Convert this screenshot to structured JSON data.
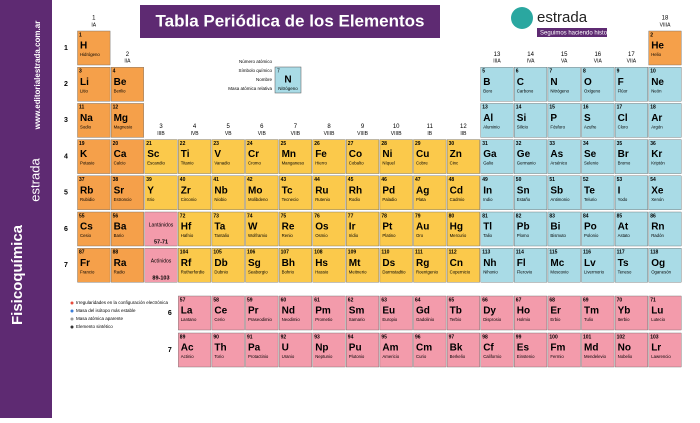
{
  "header": {
    "title": "Tabla Periódica de los Elementos",
    "brand": "estrada",
    "slogan": "Seguimos haciendo historia"
  },
  "sidebar": {
    "url": "www.editorialestrada.com.ar",
    "brand": "estrada",
    "subject": "Fisicoquímica"
  },
  "groups": [
    {
      "number": 1,
      "roman": "IA"
    },
    {
      "number": 2,
      "roman": "IIA"
    },
    {
      "number": 3,
      "roman": "IIIB"
    },
    {
      "number": 4,
      "roman": "IVB"
    },
    {
      "number": 5,
      "roman": "VB"
    },
    {
      "number": 6,
      "roman": "VIB"
    },
    {
      "number": 7,
      "roman": "VIIB"
    },
    {
      "number": 8,
      "roman": "VIIIB"
    },
    {
      "number": 9,
      "roman": "VIIIB"
    },
    {
      "number": 10,
      "roman": "VIIIB"
    },
    {
      "number": 11,
      "roman": "IB"
    },
    {
      "number": 12,
      "roman": "IIB"
    },
    {
      "number": 13,
      "roman": "IIIA"
    },
    {
      "number": 14,
      "roman": "IVA"
    },
    {
      "number": 15,
      "roman": "VA"
    },
    {
      "number": 16,
      "roman": "VIA"
    },
    {
      "number": 17,
      "roman": "VIIA"
    },
    {
      "number": 18,
      "roman": "VIIIA"
    }
  ],
  "periods": [
    1,
    2,
    3,
    4,
    5,
    6,
    7
  ],
  "f_periods": [
    6,
    7
  ],
  "placeholders": [
    {
      "name": "Lantánidos",
      "range": "57-71"
    },
    {
      "name": "Actínidos",
      "range": "89-103"
    }
  ],
  "key": {
    "symbol": "N",
    "number": 7,
    "name": "Nitrógeno",
    "labels": [
      "Número atómico",
      "Símbolo químico",
      "Nombre",
      "Masa atómica relativa"
    ]
  },
  "legend": [
    "Irregularidades en la configuración electrónica",
    "Masa del isótopo más estable",
    "Masa atómica aparente",
    "Elemento sintético"
  ],
  "elements": [
    [
      1,
      "H",
      "Hidrógeno"
    ],
    [
      2,
      "He",
      "Helio"
    ],
    [
      3,
      "Li",
      "Litio"
    ],
    [
      4,
      "Be",
      "Berilio"
    ],
    [
      5,
      "B",
      "Boro"
    ],
    [
      6,
      "C",
      "Carbono"
    ],
    [
      7,
      "N",
      "Nitrógeno"
    ],
    [
      8,
      "O",
      "Oxígeno"
    ],
    [
      9,
      "F",
      "Flúor"
    ],
    [
      10,
      "Ne",
      "Neón"
    ],
    [
      11,
      "Na",
      "Sodio"
    ],
    [
      12,
      "Mg",
      "Magnesio"
    ],
    [
      13,
      "Al",
      "Aluminio"
    ],
    [
      14,
      "Si",
      "Silicio"
    ],
    [
      15,
      "P",
      "Fósforo"
    ],
    [
      16,
      "S",
      "Azufre"
    ],
    [
      17,
      "Cl",
      "Cloro"
    ],
    [
      18,
      "Ar",
      "Argón"
    ],
    [
      19,
      "K",
      "Potasio"
    ],
    [
      20,
      "Ca",
      "Calcio"
    ],
    [
      21,
      "Sc",
      "Escandio"
    ],
    [
      22,
      "Ti",
      "Titanio"
    ],
    [
      23,
      "V",
      "Vanadio"
    ],
    [
      24,
      "Cr",
      "Cromo"
    ],
    [
      25,
      "Mn",
      "Manganeso"
    ],
    [
      26,
      "Fe",
      "Hierro"
    ],
    [
      27,
      "Co",
      "Cobalto"
    ],
    [
      28,
      "Ni",
      "Níquel"
    ],
    [
      29,
      "Cu",
      "Cobre"
    ],
    [
      30,
      "Zn",
      "Cinc"
    ],
    [
      31,
      "Ga",
      "Galio"
    ],
    [
      32,
      "Ge",
      "Germanio"
    ],
    [
      33,
      "As",
      "Arsénico"
    ],
    [
      34,
      "Se",
      "Selenio"
    ],
    [
      35,
      "Br",
      "Bromo"
    ],
    [
      36,
      "Kr",
      "Kriptón"
    ],
    [
      37,
      "Rb",
      "Rubidio"
    ],
    [
      38,
      "Sr",
      "Estroncio"
    ],
    [
      39,
      "Y",
      "Itrio"
    ],
    [
      40,
      "Zr",
      "Circonio"
    ],
    [
      41,
      "Nb",
      "Niobio"
    ],
    [
      42,
      "Mo",
      "Molibdeno"
    ],
    [
      43,
      "Tc",
      "Tecnecio"
    ],
    [
      44,
      "Ru",
      "Rutenio"
    ],
    [
      45,
      "Rh",
      "Rodio"
    ],
    [
      46,
      "Pd",
      "Paladio"
    ],
    [
      47,
      "Ag",
      "Plata"
    ],
    [
      48,
      "Cd",
      "Cadmio"
    ],
    [
      49,
      "In",
      "Indio"
    ],
    [
      50,
      "Sn",
      "Estaño"
    ],
    [
      51,
      "Sb",
      "Antimonio"
    ],
    [
      52,
      "Te",
      "Telurio"
    ],
    [
      53,
      "I",
      "Yodo"
    ],
    [
      54,
      "Xe",
      "Xenón"
    ],
    [
      55,
      "Cs",
      "Cesio"
    ],
    [
      56,
      "Ba",
      "Bario"
    ],
    [
      57,
      "La",
      "Lantano"
    ],
    [
      58,
      "Ce",
      "Cerio"
    ],
    [
      59,
      "Pr",
      "Praseodimio"
    ],
    [
      60,
      "Nd",
      "Neodimio"
    ],
    [
      61,
      "Pm",
      "Prometio"
    ],
    [
      62,
      "Sm",
      "Samario"
    ],
    [
      63,
      "Eu",
      "Europio"
    ],
    [
      64,
      "Gd",
      "Gadolinio"
    ],
    [
      65,
      "Tb",
      "Terbio"
    ],
    [
      66,
      "Dy",
      "Disprosio"
    ],
    [
      67,
      "Ho",
      "Holmio"
    ],
    [
      68,
      "Er",
      "Erbio"
    ],
    [
      69,
      "Tm",
      "Tulio"
    ],
    [
      70,
      "Yb",
      "Iterbio"
    ],
    [
      71,
      "Lu",
      "Lutecio"
    ],
    [
      72,
      "Hf",
      "Hafnio"
    ],
    [
      73,
      "Ta",
      "Tantalio"
    ],
    [
      74,
      "W",
      "Wolframio"
    ],
    [
      75,
      "Re",
      "Renio"
    ],
    [
      76,
      "Os",
      "Osmio"
    ],
    [
      77,
      "Ir",
      "Iridio"
    ],
    [
      78,
      "Pt",
      "Platino"
    ],
    [
      79,
      "Au",
      "Oro"
    ],
    [
      80,
      "Hg",
      "Mercurio"
    ],
    [
      81,
      "Tl",
      "Talio"
    ],
    [
      82,
      "Pb",
      "Plomo"
    ],
    [
      83,
      "Bi",
      "Bismuto"
    ],
    [
      84,
      "Po",
      "Polonio"
    ],
    [
      85,
      "At",
      "Astato"
    ],
    [
      86,
      "Rn",
      "Radón"
    ],
    [
      87,
      "Fr",
      "Francio"
    ],
    [
      88,
      "Ra",
      "Radio"
    ],
    [
      89,
      "Ac",
      "Actinio"
    ],
    [
      90,
      "Th",
      "Torio"
    ],
    [
      91,
      "Pa",
      "Protactinio"
    ],
    [
      92,
      "U",
      "Uranio"
    ],
    [
      93,
      "Np",
      "Neptunio"
    ],
    [
      94,
      "Pu",
      "Plutonio"
    ],
    [
      95,
      "Am",
      "Americio"
    ],
    [
      96,
      "Cm",
      "Curio"
    ],
    [
      97,
      "Bk",
      "Berkelio"
    ],
    [
      98,
      "Cf",
      "Californio"
    ],
    [
      99,
      "Es",
      "Einstenio"
    ],
    [
      100,
      "Fm",
      "Fermio"
    ],
    [
      101,
      "Md",
      "Mendelevio"
    ],
    [
      102,
      "No",
      "Nobelio"
    ],
    [
      103,
      "Lr",
      "Lawrencio"
    ],
    [
      104,
      "Rf",
      "Rutherfordio"
    ],
    [
      105,
      "Db",
      "Dubnio"
    ],
    [
      106,
      "Sg",
      "Seaborgio"
    ],
    [
      107,
      "Bh",
      "Bohrio"
    ],
    [
      108,
      "Hs",
      "Hassio"
    ],
    [
      109,
      "Mt",
      "Meitnerio"
    ],
    [
      110,
      "Ds",
      "Darmstadtio"
    ],
    [
      111,
      "Rg",
      "Roentgenio"
    ],
    [
      112,
      "Cn",
      "Copernicio"
    ],
    [
      113,
      "Nh",
      "Nihonio"
    ],
    [
      114,
      "Fl",
      "Flerovio"
    ],
    [
      115,
      "Mc",
      "Moscovio"
    ],
    [
      116,
      "Lv",
      "Livermorio"
    ],
    [
      117,
      "Ts",
      "Teneso"
    ],
    [
      118,
      "Og",
      "Oganesón"
    ]
  ]
}
